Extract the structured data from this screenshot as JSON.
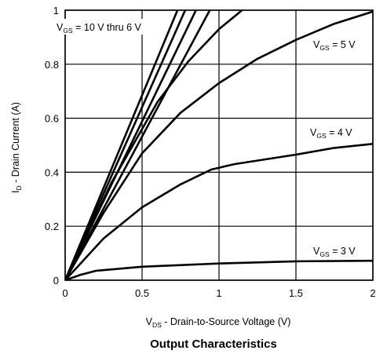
{
  "chart_data": {
    "type": "line",
    "title": "Output Characteristics",
    "xlabel": {
      "main": "V",
      "sub": "DS",
      "rest": " - Drain-to-Source Voltage (V)"
    },
    "ylabel": {
      "main": "I",
      "sub": "D",
      "rest": " - Drain Current (A)"
    },
    "xlim": [
      0,
      2
    ],
    "ylim": [
      0,
      1
    ],
    "xticks": [
      0,
      0.5,
      1,
      1.5,
      2
    ],
    "xtick_labels": [
      "0",
      "0.5",
      "1",
      "1.5",
      "2"
    ],
    "yticks": [
      0,
      0.2,
      0.4,
      0.6,
      0.8,
      1
    ],
    "ytick_labels": [
      "0",
      "0.2",
      "0.4",
      "0.6",
      "0.8",
      "1"
    ],
    "grid": true,
    "series": [
      {
        "x": [
          0,
          0.73
        ],
        "y": [
          0,
          1.0
        ]
      },
      {
        "x": [
          0,
          0.78
        ],
        "y": [
          0,
          1.0
        ]
      },
      {
        "x": [
          0,
          0.85
        ],
        "y": [
          0,
          1.0
        ]
      },
      {
        "x": [
          0,
          0.94
        ],
        "y": [
          0,
          1.0
        ]
      },
      {
        "x": [
          0,
          0.3,
          0.6,
          0.8,
          1.0,
          1.15
        ],
        "y": [
          0,
          0.36,
          0.66,
          0.81,
          0.93,
          1.0
        ]
      },
      {
        "x": [
          0,
          0.25,
          0.5,
          0.75,
          1.0,
          1.25,
          1.5,
          1.75,
          2.0
        ],
        "y": [
          0,
          0.25,
          0.47,
          0.62,
          0.73,
          0.82,
          0.89,
          0.95,
          0.995
        ]
      },
      {
        "x": [
          0,
          0.25,
          0.5,
          0.75,
          0.95,
          1.1,
          1.5,
          1.75,
          2.0
        ],
        "y": [
          0,
          0.155,
          0.27,
          0.355,
          0.41,
          0.43,
          0.465,
          0.49,
          0.505
        ]
      },
      {
        "x": [
          0,
          0.1,
          0.2,
          0.5,
          1.0,
          1.5,
          2.0
        ],
        "y": [
          0,
          0.02,
          0.035,
          0.05,
          0.062,
          0.07,
          0.072
        ]
      }
    ],
    "annotations": [
      {
        "main": "V",
        "sub": "GS",
        "rest": " = 10 V thru 6 V"
      },
      {
        "main": "V",
        "sub": "GS",
        "rest": " = 5 V"
      },
      {
        "main": "V",
        "sub": "GS",
        "rest": " = 4 V"
      },
      {
        "main": "V",
        "sub": "GS",
        "rest": " = 3 V"
      }
    ]
  }
}
